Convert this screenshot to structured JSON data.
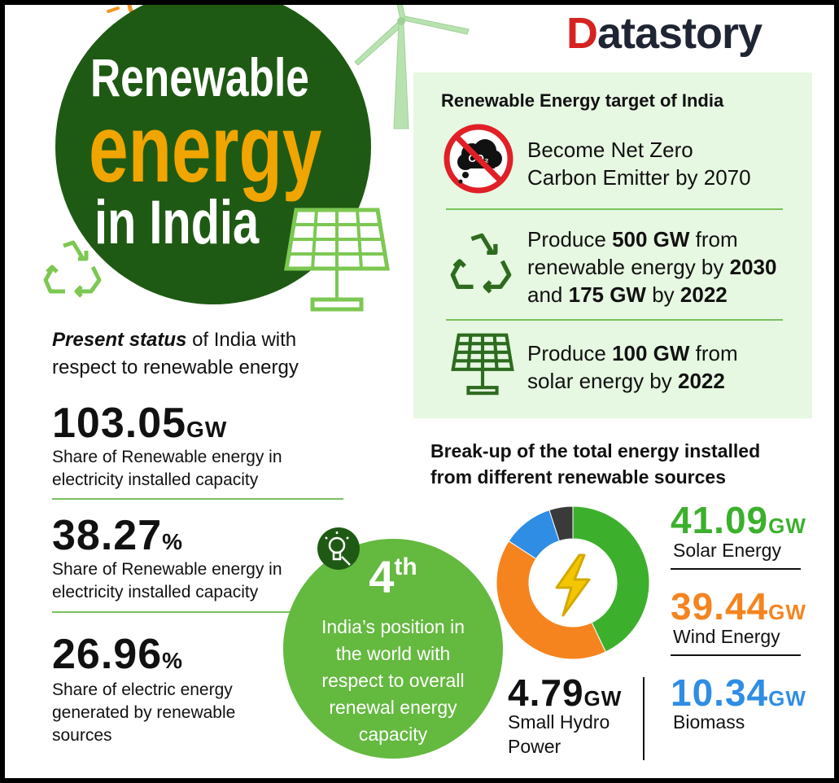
{
  "brand": {
    "first_letter": "D",
    "rest": "atastory"
  },
  "hero": {
    "line1": "Renewable",
    "line2": "energy",
    "line3": "in India"
  },
  "targets": {
    "title": "Renewable Energy target of India",
    "items": [
      {
        "icon": "no-co2-icon",
        "line1": "Become Net Zero",
        "line2": "Carbon Emitter by 2070"
      },
      {
        "icon": "recycle-icon",
        "p1": "Produce ",
        "b1": "500 GW",
        "p2": " from",
        "p3": "renewable energy by ",
        "b2": "2030",
        "p4": "and ",
        "b3": "175 GW",
        "p5": " by ",
        "b4": "2022"
      },
      {
        "icon": "solar-panel-icon",
        "p1": "Produce ",
        "b1": "100 GW",
        "p2": " from",
        "p3": "solar energy by ",
        "b2": "2022"
      }
    ]
  },
  "status": {
    "intro_bold": "Present status",
    "intro_rest": " of India with",
    "intro_line2": "respect to renewable energy",
    "stats": [
      {
        "value": "103.05",
        "unit": "GW",
        "desc1": "Share of Renewable energy in",
        "desc2": "electricity installed capacity"
      },
      {
        "value": "38.27",
        "unit": "%",
        "desc1": "Share of Renewable energy in",
        "desc2": "electricity installed capacity"
      },
      {
        "value": "26.96",
        "unit": "%",
        "desc1": "Share of electric energy",
        "desc2": "generated by renewable",
        "desc3": "sources"
      }
    ]
  },
  "position": {
    "num": "4",
    "suffix": "th",
    "l1": "India’s position in",
    "l2": "the world with",
    "l3": "respect to overall",
    "l4": "renewal energy",
    "l5": "capacity"
  },
  "breakup": {
    "title1": "Break-up of the total energy installed",
    "title2": "from different renewable sources",
    "sources": [
      {
        "value": "41.09",
        "unit": "GW",
        "label": "Solar Energy",
        "color": "#3cb02c"
      },
      {
        "value": "39.44",
        "unit": "GW",
        "label": "Wind Energy",
        "color": "#f5841f"
      },
      {
        "value": "10.34",
        "unit": "GW",
        "label": "Biomass",
        "color": "#2f8de4"
      },
      {
        "value": "4.79",
        "unit": "GW",
        "label1": "Small Hydro",
        "label2": "Power",
        "color": "#3a3a3a"
      }
    ]
  },
  "colors": {
    "dark_green": "#1f5a14",
    "light_green": "#64b93f",
    "orange": "#f0a500",
    "brand_red": "#d6231f"
  }
}
